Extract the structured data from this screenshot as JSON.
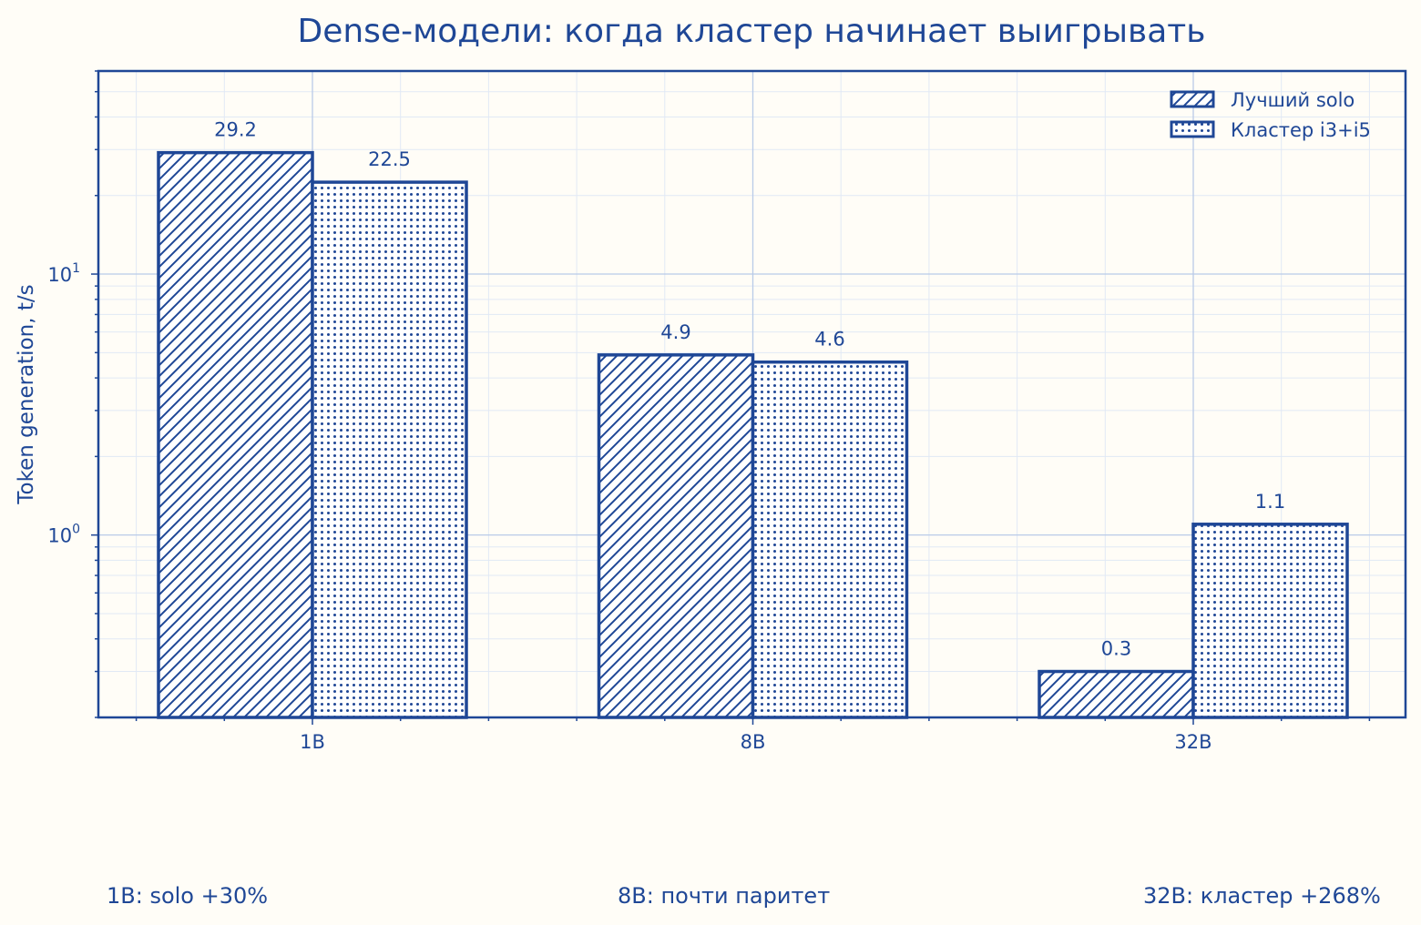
{
  "chart_data": {
    "type": "bar",
    "title": "Dense-модели: когда кластер начинает выигрывать",
    "ylabel": "Token generation, t/s",
    "xlabel": "",
    "y_scale": "log",
    "ylim": [
      0.2,
      60
    ],
    "y_ticks": [
      {
        "value": 1,
        "base": "10",
        "exp": "0"
      },
      {
        "value": 10,
        "base": "10",
        "exp": "1"
      }
    ],
    "grid": true,
    "legend_position": "top-right",
    "categories": [
      "1B",
      "8B",
      "32B"
    ],
    "series": [
      {
        "name": "Лучший solo",
        "values": [
          29.2,
          4.9,
          0.3
        ],
        "labels": [
          "29.2",
          "4.9",
          "0.3"
        ],
        "pattern": "hatch"
      },
      {
        "name": "Кластер i3+i5",
        "values": [
          22.5,
          4.6,
          1.1
        ],
        "labels": [
          "22.5",
          "4.6",
          "1.1"
        ],
        "pattern": "dots"
      }
    ],
    "colors": {
      "accent": "#1f4796",
      "grid_major": "#b9cbe8",
      "grid_minor": "#e1e9f5",
      "background": "#fffdf7"
    }
  },
  "footnotes": [
    "1B: solo +30%",
    "8B: почти паритет",
    "32B: кластер +268%"
  ]
}
